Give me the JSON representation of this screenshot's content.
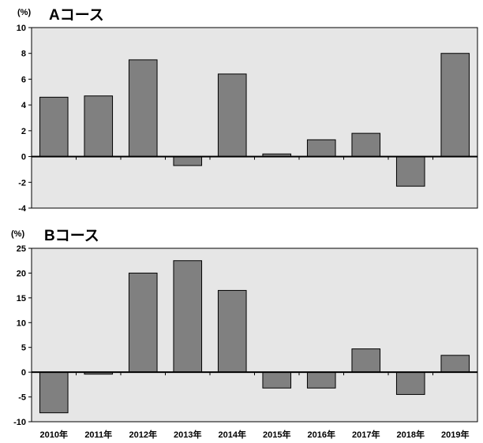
{
  "colors": {
    "plot_background": "#e6e6e6",
    "bar_fill": "#808080",
    "axis": "#000000"
  },
  "x_labels": [
    "2010年",
    "2011年",
    "2012年",
    "2013年",
    "2014年",
    "2015年",
    "2016年",
    "2017年",
    "2018年",
    "2019年"
  ],
  "chart_data": [
    {
      "type": "bar",
      "unit_label": "(%)",
      "title": "Aコース",
      "categories": [
        "2010年",
        "2011年",
        "2012年",
        "2013年",
        "2014年",
        "2015年",
        "2016年",
        "2017年",
        "2018年",
        "2019年"
      ],
      "values": [
        4.6,
        4.7,
        7.5,
        -0.7,
        6.4,
        0.2,
        1.3,
        1.8,
        -2.3,
        8.0
      ],
      "ylim": [
        -4,
        10
      ],
      "yticks": [
        10,
        8,
        6,
        4,
        2,
        0,
        -2,
        -4
      ],
      "grid": false,
      "legend": "none"
    },
    {
      "type": "bar",
      "unit_label": "(%)",
      "title": "Bコース",
      "categories": [
        "2010年",
        "2011年",
        "2012年",
        "2013年",
        "2014年",
        "2015年",
        "2016年",
        "2017年",
        "2018年",
        "2019年"
      ],
      "values": [
        -8.2,
        -0.4,
        20.0,
        22.5,
        16.5,
        -3.2,
        -3.2,
        4.7,
        -4.5,
        3.4
      ],
      "ylim": [
        -10,
        25
      ],
      "yticks": [
        25,
        20,
        15,
        10,
        5,
        0,
        -5,
        -10
      ],
      "grid": false,
      "legend": "none"
    }
  ]
}
